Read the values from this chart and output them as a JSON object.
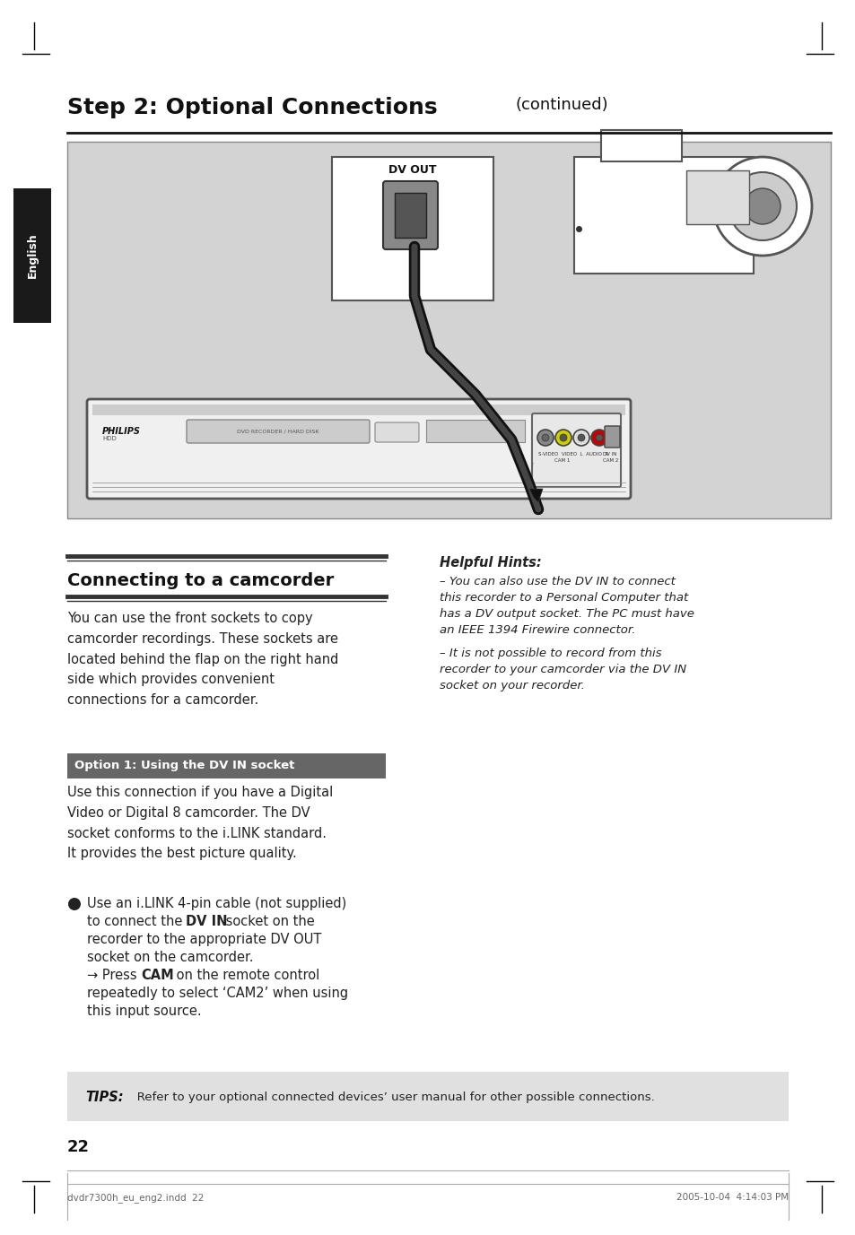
{
  "page_bg": "#ffffff",
  "title_bold": "Step 2: Optional Connections",
  "title_normal": "(continued)",
  "title_fontsize": 18,
  "title_continued_fontsize": 13,
  "english_tab_color": "#1a1a1a",
  "english_tab_text": "English",
  "image_bg": "#d3d3d3",
  "dv_out_label": "DV OUT",
  "section1_title": "Connecting to a camcorder",
  "section1_body": "You can use the front sockets to copy\ncamcorder recordings. These sockets are\nlocated behind the flap on the right hand\nside which provides convenient\nconnections for a camcorder.",
  "hints_title": "Helpful Hints:",
  "hints_line1": "– You can also use the DV IN to connect",
  "hints_line2": "this recorder to a Personal Computer that",
  "hints_line3": "has a DV output socket. The PC must have",
  "hints_line4": "an IEEE 1394 Firewire connector.",
  "hints_line5": "– It is not possible to record from this",
  "hints_line6": "recorder to your camcorder via the DV IN",
  "hints_line7": "socket on your recorder.",
  "option1_title": "Option 1: Using the DV IN socket",
  "option1_body": "Use this connection if you have a Digital\nVideo or Digital 8 camcorder. The DV\nsocket conforms to the i.LINK standard.\nIt provides the best picture quality.",
  "bullet_line1": "Use an i.LINK 4-pin cable (not supplied)",
  "bullet_line2_pre": "to connect the ",
  "bullet_line2_bold": "DV IN",
  "bullet_line2_post": " socket on the",
  "bullet_line3": "recorder to the appropriate DV OUT",
  "bullet_line4": "socket on the camcorder.",
  "arrow_line1_pre": "→ Press ",
  "arrow_line1_bold": "CAM",
  "arrow_line1_post": " on the remote control",
  "arrow_line2": "repeatedly to select ‘CAM2’ when using",
  "arrow_line3": "this input source.",
  "tips_bold": "TIPS:",
  "tips_rest": "   Refer to your optional connected devices’ user manual for other possible connections.",
  "page_number": "22",
  "footer_left": "dvdr7300h_eu_eng2.indd  22",
  "footer_right": "2005-10-04  4:14:03 PM",
  "crop_color": "#000000",
  "option1_bg": "#666666",
  "tips_bg": "#e0e0e0"
}
